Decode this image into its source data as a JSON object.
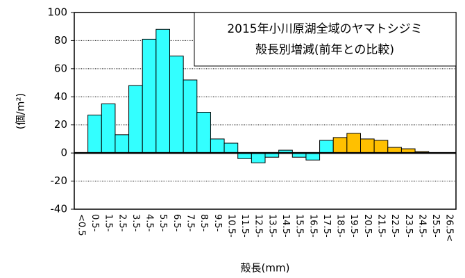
{
  "chart_data": {
    "type": "bar",
    "title": [
      "2015年小川原湖全域のヤマトシジミ",
      "殻長別増減(前年との比較)"
    ],
    "x_label": "殻長(mm)",
    "y_label": "(個/m²)",
    "categories": [
      "<0.5",
      "0.5-",
      "1.5-",
      "2.5-",
      "3.5-",
      "4.5-",
      "5.5-",
      "6.5-",
      "7.5-",
      "8.5-",
      "9.5-",
      "10.5-",
      "11.5-",
      "12.5-",
      "13.5-",
      "14.5-",
      "15.5-",
      "16.5-",
      "17.5-",
      "18.5-",
      "19.5-",
      "20.5-",
      "21.5-",
      "22.5-",
      "23.5-",
      "24.5-",
      "25.5-",
      "26.5<"
    ],
    "values": [
      0,
      27,
      35,
      13,
      48,
      81,
      88,
      69,
      52,
      29,
      10,
      7,
      -4,
      -7,
      -3,
      2,
      -3,
      -5,
      9,
      11,
      14,
      10,
      9,
      4,
      3,
      1,
      0,
      0
    ],
    "colors": [
      "#33ffff",
      "#33ffff",
      "#33ffff",
      "#33ffff",
      "#33ffff",
      "#33ffff",
      "#33ffff",
      "#33ffff",
      "#33ffff",
      "#33ffff",
      "#33ffff",
      "#33ffff",
      "#33ffff",
      "#33ffff",
      "#33ffff",
      "#33ffff",
      "#33ffff",
      "#33ffff",
      "#33ffff",
      "#ffc000",
      "#ffc000",
      "#ffc000",
      "#ffc000",
      "#ffc000",
      "#ffc000",
      "#ffc000",
      "#ffc000",
      "#ffc000"
    ],
    "ylim": [
      -40,
      100
    ],
    "yticks": [
      -40,
      -20,
      0,
      20,
      40,
      60,
      80,
      100
    ],
    "grid": true
  }
}
